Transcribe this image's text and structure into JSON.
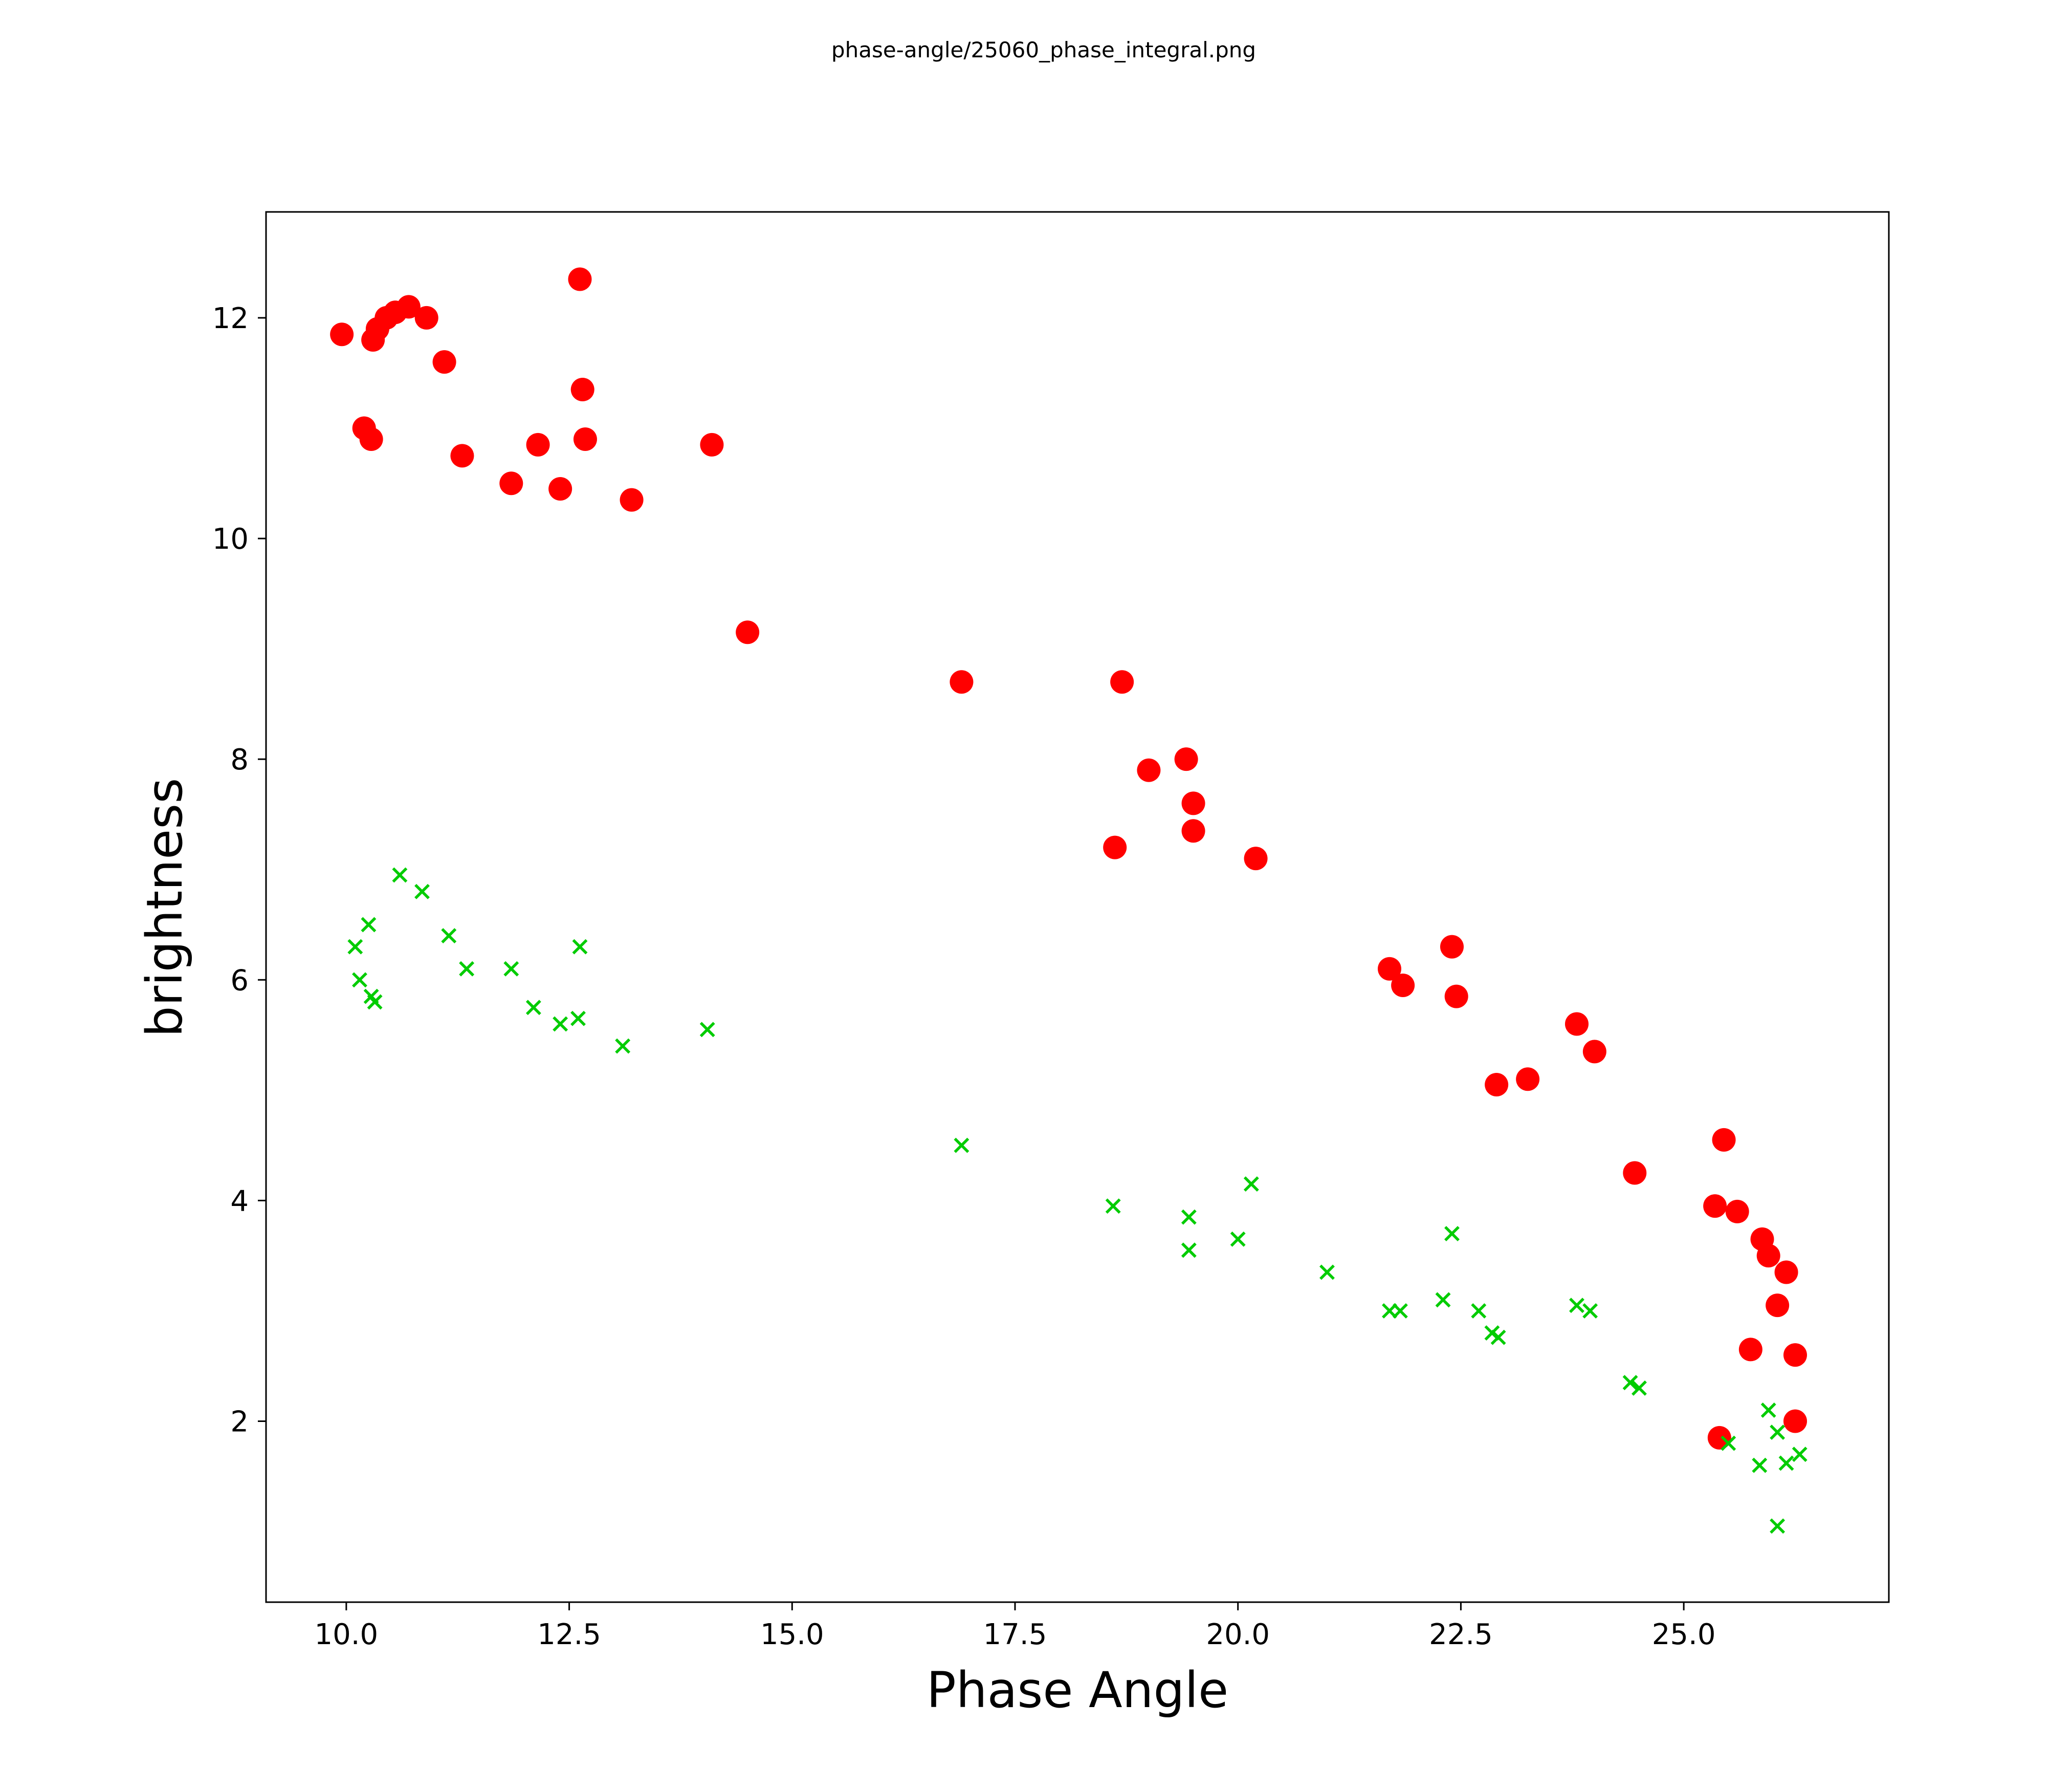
{
  "title": "phase-angle/25060_phase_integral.png",
  "chart_data": {
    "type": "scatter",
    "title": "phase-angle/25060_phase_integral.png",
    "xlabel": "Phase Angle",
    "ylabel": "brightness",
    "xlim": [
      9.1,
      27.3
    ],
    "ylim": [
      0.36,
      12.96
    ],
    "x_ticks": [
      10.0,
      12.5,
      15.0,
      17.5,
      20.0,
      22.5,
      25.0
    ],
    "x_tick_labels": [
      "10.0",
      "12.5",
      "15.0",
      "17.5",
      "20.0",
      "22.5",
      "25.0"
    ],
    "y_ticks": [
      2,
      4,
      6,
      8,
      10,
      12
    ],
    "y_tick_labels": [
      "2",
      "4",
      "6",
      "8",
      "10",
      "12"
    ],
    "grid": false,
    "legend": "none",
    "colors": {
      "red_series": "#ff0000",
      "green_series": "#00cc00",
      "axis": "#000000"
    },
    "series": [
      {
        "name": "red-circles",
        "marker": "circle",
        "color": "#ff0000",
        "points": [
          [
            9.95,
            11.85
          ],
          [
            10.2,
            11.0
          ],
          [
            10.28,
            10.9
          ],
          [
            10.3,
            11.8
          ],
          [
            10.35,
            11.9
          ],
          [
            10.45,
            12.0
          ],
          [
            10.55,
            12.05
          ],
          [
            10.7,
            12.1
          ],
          [
            10.9,
            12.0
          ],
          [
            11.1,
            11.6
          ],
          [
            11.3,
            10.75
          ],
          [
            11.85,
            10.5
          ],
          [
            12.15,
            10.85
          ],
          [
            12.4,
            10.45
          ],
          [
            12.62,
            12.35
          ],
          [
            12.65,
            11.35
          ],
          [
            12.68,
            10.9
          ],
          [
            13.2,
            10.35
          ],
          [
            14.1,
            10.85
          ],
          [
            14.5,
            9.15
          ],
          [
            16.9,
            8.7
          ],
          [
            18.7,
            8.7
          ],
          [
            18.62,
            7.2
          ],
          [
            19.0,
            7.9
          ],
          [
            19.42,
            8.0
          ],
          [
            19.5,
            7.6
          ],
          [
            19.5,
            7.35
          ],
          [
            20.2,
            7.1
          ],
          [
            21.7,
            6.1
          ],
          [
            21.85,
            5.95
          ],
          [
            22.4,
            6.3
          ],
          [
            22.45,
            5.85
          ],
          [
            22.9,
            5.05
          ],
          [
            23.25,
            5.1
          ],
          [
            23.8,
            5.6
          ],
          [
            24.0,
            5.35
          ],
          [
            24.45,
            4.25
          ],
          [
            25.45,
            4.55
          ],
          [
            25.35,
            3.95
          ],
          [
            25.6,
            3.9
          ],
          [
            25.88,
            3.65
          ],
          [
            25.95,
            3.5
          ],
          [
            26.15,
            3.35
          ],
          [
            26.05,
            3.05
          ],
          [
            25.75,
            2.65
          ],
          [
            26.25,
            2.6
          ],
          [
            25.4,
            1.85
          ],
          [
            26.25,
            2.0
          ]
        ]
      },
      {
        "name": "green-crosses",
        "marker": "x",
        "color": "#00cc00",
        "points": [
          [
            10.1,
            6.3
          ],
          [
            10.15,
            6.0
          ],
          [
            10.25,
            6.5
          ],
          [
            10.28,
            5.85
          ],
          [
            10.32,
            5.8
          ],
          [
            10.6,
            6.95
          ],
          [
            10.85,
            6.8
          ],
          [
            11.15,
            6.4
          ],
          [
            11.35,
            6.1
          ],
          [
            11.85,
            6.1
          ],
          [
            12.1,
            5.75
          ],
          [
            12.4,
            5.6
          ],
          [
            12.6,
            5.65
          ],
          [
            12.62,
            6.3
          ],
          [
            13.1,
            5.4
          ],
          [
            14.05,
            5.55
          ],
          [
            16.9,
            4.5
          ],
          [
            18.6,
            3.95
          ],
          [
            19.45,
            3.85
          ],
          [
            19.45,
            3.55
          ],
          [
            20.0,
            3.65
          ],
          [
            20.15,
            4.15
          ],
          [
            21.0,
            3.35
          ],
          [
            21.7,
            3.0
          ],
          [
            21.82,
            3.0
          ],
          [
            22.3,
            3.1
          ],
          [
            22.4,
            3.7
          ],
          [
            22.7,
            3.0
          ],
          [
            22.85,
            2.8
          ],
          [
            22.92,
            2.76
          ],
          [
            23.8,
            3.05
          ],
          [
            23.95,
            3.0
          ],
          [
            24.4,
            2.35
          ],
          [
            24.5,
            2.3
          ],
          [
            25.5,
            1.8
          ],
          [
            25.95,
            2.1
          ],
          [
            26.05,
            1.9
          ],
          [
            25.85,
            1.6
          ],
          [
            26.15,
            1.62
          ],
          [
            26.3,
            1.7
          ],
          [
            26.05,
            1.05
          ]
        ]
      }
    ]
  }
}
